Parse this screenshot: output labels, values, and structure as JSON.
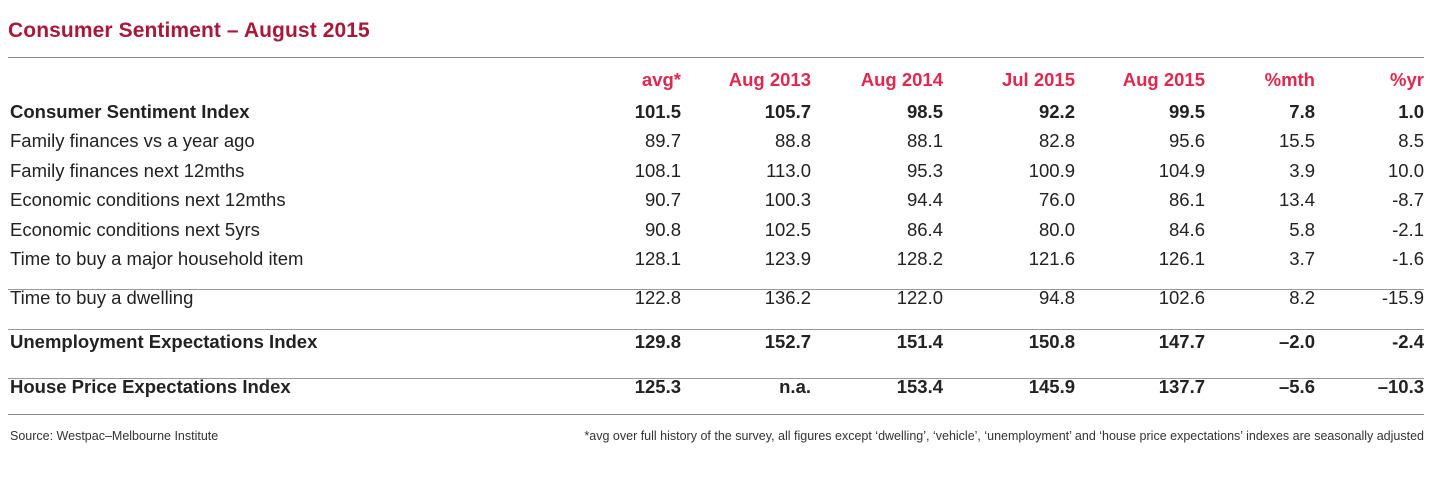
{
  "title": "Consumer Sentiment – August 2015",
  "chart_data": {
    "type": "table",
    "title": "Consumer Sentiment – August 2015",
    "columns": [
      "avg*",
      "Aug 2013",
      "Aug 2014",
      "Jul 2015",
      "Aug 2015",
      "%mth",
      "%yr"
    ],
    "rows": [
      {
        "label": "Consumer Sentiment Index",
        "values": [
          "101.5",
          "105.7",
          "98.5",
          "92.2",
          "99.5",
          "7.8",
          "1.0"
        ]
      },
      {
        "label": "Family finances vs a year ago",
        "values": [
          "89.7",
          "88.8",
          "88.1",
          "82.8",
          "95.6",
          "15.5",
          "8.5"
        ]
      },
      {
        "label": "Family finances next 12mths",
        "values": [
          "108.1",
          "113.0",
          "95.3",
          "100.9",
          "104.9",
          "3.9",
          "10.0"
        ]
      },
      {
        "label": "Economic conditions next 12mths",
        "values": [
          "90.7",
          "100.3",
          "94.4",
          "76.0",
          "86.1",
          "13.4",
          "-8.7"
        ]
      },
      {
        "label": "Economic conditions next 5yrs",
        "values": [
          "90.8",
          "102.5",
          "86.4",
          "80.0",
          "84.6",
          "5.8",
          "-2.1"
        ]
      },
      {
        "label": "Time to buy a major household item",
        "values": [
          "128.1",
          "123.9",
          "128.2",
          "121.6",
          "126.1",
          "3.7",
          "-1.6"
        ]
      },
      {
        "label": "Time to buy a dwelling",
        "values": [
          "122.8",
          "136.2",
          "122.0",
          "94.8",
          "102.6",
          "8.2",
          "-15.9"
        ]
      },
      {
        "label": "Unemployment Expectations Index",
        "values": [
          "129.8",
          "152.7",
          "151.4",
          "150.8",
          "147.7",
          "–2.0",
          "-2.4"
        ]
      },
      {
        "label": "House Price Expectations Index",
        "values": [
          "125.3",
          "n.a.",
          "153.4",
          "145.9",
          "137.7",
          "–5.6",
          "–10.3"
        ]
      }
    ]
  },
  "footer": {
    "source": "Source: Westpac–Melbourne Institute",
    "note": "*avg over full history of the survey, all figures except ‘dwelling’, ‘vehicle’, ‘unemployment’ and ‘house price expectations’ indexes are seasonally adjusted"
  },
  "colors": {
    "title": "#a8183a",
    "header": "#e0284e"
  }
}
